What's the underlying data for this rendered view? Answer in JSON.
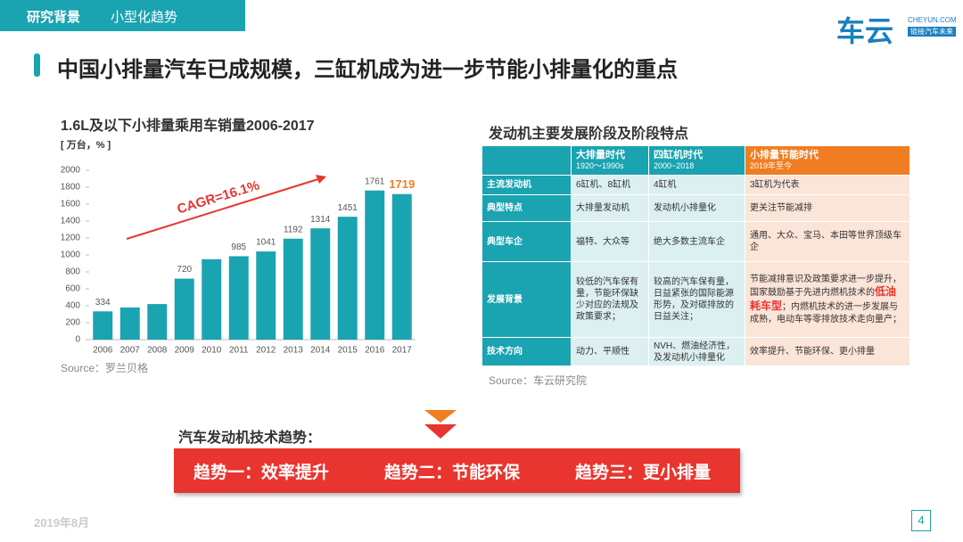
{
  "header": {
    "section": "研究背景",
    "subsection": "小型化趋势",
    "logo": "车云",
    "logo_url": "CHEYUN.COM",
    "logo_slogan": "链接汽车未来"
  },
  "title": "中国小排量汽车已成规模，三缸机成为进一步节能小排量化的重点",
  "chart_data": {
    "type": "bar",
    "title": "1.6L及以下小排量乘用车销量2006-2017",
    "subtitle": "[ 万台，% ]",
    "source": "Source：罗兰贝格",
    "annotation": "CAGR=16.1%",
    "categories": [
      "2006",
      "2007",
      "2008",
      "2009",
      "2010",
      "2011",
      "2012",
      "2013",
      "2014",
      "2015",
      "2016",
      "2017"
    ],
    "values": [
      334,
      380,
      420,
      720,
      950,
      985,
      1041,
      1192,
      1314,
      1451,
      1761,
      1719
    ],
    "value_labels": [
      "334",
      null,
      null,
      "720",
      null,
      "985",
      "1041",
      "1192",
      "1314",
      "1451",
      "1761",
      "1719"
    ],
    "color": "#1aa3b1",
    "highlight_color": "#f07d22",
    "ylim": [
      0,
      2000
    ],
    "yticks": [
      0,
      200,
      400,
      600,
      800,
      1000,
      1200,
      1400,
      1600,
      1800,
      2000
    ],
    "grid": false
  },
  "table": {
    "title": "发动机主要发展阶段及阶段特点",
    "header": [
      "",
      [
        "大排量时代",
        "1920～1990s"
      ],
      [
        "四缸机时代",
        "2000~2018"
      ],
      [
        "小排量节能时代",
        "2019年至今"
      ]
    ],
    "rows": [
      [
        "主流发动机",
        "6缸机、8缸机",
        "4缸机",
        "3缸机为代表"
      ],
      [
        "典型特点",
        "大排量发动机",
        "发动机小排量化",
        "更关注节能减排"
      ],
      [
        "典型车企",
        "福特、大众等",
        "绝大多数主流车企",
        "通用、大众、宝马、本田等世界顶级车企"
      ],
      [
        "发展背景",
        "较低的汽车保有量，节能环保缺少对应的法规及政策要求；",
        "较高的汽车保有量，日益紧张的国际能源形势，及对碳排放的日益关注；",
        [
          "节能减排意识及政策要求进一步提升，国家鼓励基于先进内燃机技术的",
          "低油耗车型",
          "；内燃机技术的进一步发展与成熟，电动车等零排放技术走向量产；"
        ]
      ],
      [
        "技术方向",
        "动力、平顺性",
        "NVH、燃油经济性，及发动机小排量化",
        "效率提升、节能环保、更小排量"
      ]
    ],
    "source": "Source：车云研究院"
  },
  "trends": {
    "label": "汽车发动机技术趋势：",
    "items": [
      "趋势一：效率提升",
      "趋势二：节能环保",
      "趋势三：更小排量"
    ]
  },
  "footer": {
    "date": "2019年8月",
    "page": 4
  }
}
